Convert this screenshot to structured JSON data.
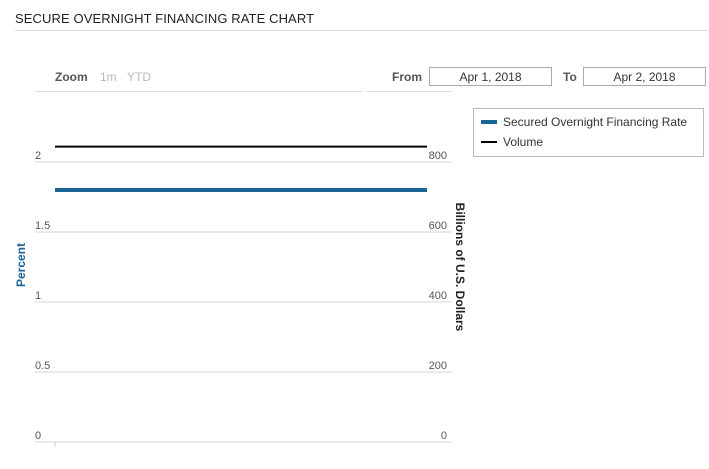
{
  "header": {
    "title": "SECURE OVERNIGHT FINANCING RATE CHART"
  },
  "range_selector": {
    "zoom_label": "Zoom",
    "zoom_buttons": [
      "1m",
      "YTD"
    ],
    "from_label": "From",
    "from_value": "Apr 1, 2018",
    "to_label": "To",
    "to_value": "Apr 2, 2018"
  },
  "chart_data": {
    "type": "line",
    "title": "SECURE OVERNIGHT FINANCING RATE CHART",
    "x": [
      "2018-04-02"
    ],
    "series": [
      {
        "name": "Secured Overnight Financing Rate",
        "axis": "left",
        "values": [
          1.8
        ],
        "color": "#1a6496"
      },
      {
        "name": "Volume",
        "axis": "right",
        "values": [
          844
        ],
        "color": "#000000"
      }
    ],
    "y_left": {
      "label": "Percent",
      "ylim": [
        0,
        2
      ],
      "ticks": [
        0,
        0.5,
        1,
        1.5,
        2
      ],
      "tick_labels": [
        "0",
        "0.5",
        "1",
        "1.5",
        "2"
      ]
    },
    "y_right": {
      "label": "Billions of U.S. Dollars",
      "ylim": [
        0,
        800
      ],
      "ticks": [
        0,
        200,
        400,
        600,
        800
      ],
      "tick_labels": [
        "0",
        "200",
        "400",
        "600",
        "800"
      ]
    },
    "grid": true,
    "legend": "top-right"
  }
}
